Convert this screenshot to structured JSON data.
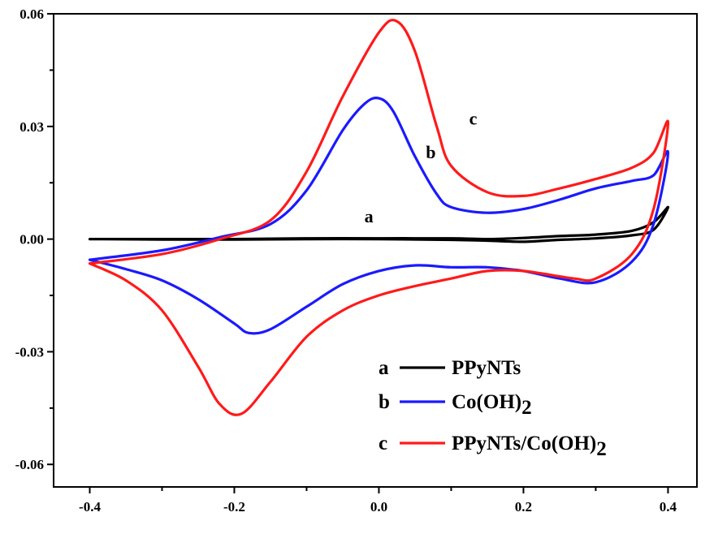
{
  "chart_data": {
    "type": "line",
    "title": "",
    "xlabel": "",
    "ylabel": "",
    "xlim": [
      -0.45,
      0.44
    ],
    "ylim": [
      -0.066,
      0.06
    ],
    "x_ticks": [
      "-0.4",
      "-0.2",
      "0.0",
      "0.2",
      "0.4"
    ],
    "x_tick_values": [
      -0.4,
      -0.2,
      0.0,
      0.2,
      0.4
    ],
    "y_ticks": [
      "0.06",
      "0.03",
      "0.00",
      "-0.03",
      "-0.06"
    ],
    "y_tick_values": [
      0.06,
      0.03,
      0.0,
      -0.03,
      -0.06
    ],
    "grid": false,
    "legend_position": "bottom-right",
    "series": [
      {
        "letter": "a",
        "name": "PPyNTs",
        "color": "#000000",
        "x": [
          -0.4,
          -0.3,
          -0.2,
          -0.1,
          0.0,
          0.1,
          0.15,
          0.2,
          0.25,
          0.3,
          0.35,
          0.38,
          0.4,
          0.38,
          0.35,
          0.3,
          0.25,
          0.2,
          0.15,
          0.1,
          0.0,
          -0.1,
          -0.2,
          -0.3,
          -0.4
        ],
        "y": [
          0.0,
          0.0,
          0.0,
          0.0002,
          0.0002,
          0.0002,
          0.0,
          0.0003,
          0.0008,
          0.0012,
          0.0022,
          0.0045,
          0.0085,
          0.0025,
          0.001,
          0.0002,
          -0.0002,
          -0.0007,
          -0.0004,
          -0.0002,
          0.0,
          0.0,
          -0.0001,
          -0.0001,
          0.0
        ]
      },
      {
        "letter": "b",
        "name": "Co(OH)",
        "name_sub": "2",
        "color": "#1a1aff",
        "x": [
          -0.4,
          -0.3,
          -0.22,
          -0.15,
          -0.1,
          -0.05,
          -0.02,
          0.0,
          0.02,
          0.05,
          0.08,
          0.1,
          0.15,
          0.2,
          0.25,
          0.3,
          0.35,
          0.38,
          0.4,
          0.38,
          0.35,
          0.3,
          0.25,
          0.2,
          0.15,
          0.1,
          0.05,
          0.0,
          -0.05,
          -0.1,
          -0.15,
          -0.18,
          -0.2,
          -0.25,
          -0.3,
          -0.35,
          -0.4
        ],
        "y": [
          -0.0055,
          -0.003,
          0.0005,
          0.004,
          0.013,
          0.029,
          0.036,
          0.0375,
          0.034,
          0.022,
          0.012,
          0.0085,
          0.007,
          0.008,
          0.0105,
          0.0135,
          0.0155,
          0.017,
          0.023,
          0.004,
          -0.006,
          -0.0115,
          -0.0105,
          -0.0085,
          -0.0075,
          -0.0075,
          -0.007,
          -0.0085,
          -0.012,
          -0.018,
          -0.024,
          -0.025,
          -0.0225,
          -0.016,
          -0.011,
          -0.008,
          -0.0055
        ]
      },
      {
        "letter": "c",
        "name": "PPyNTs/Co(OH)",
        "name_sub": "2",
        "color": "#ff1a1a",
        "x": [
          -0.4,
          -0.3,
          -0.22,
          -0.15,
          -0.1,
          -0.05,
          0.0,
          0.025,
          0.05,
          0.08,
          0.1,
          0.15,
          0.2,
          0.25,
          0.3,
          0.35,
          0.38,
          0.4,
          0.38,
          0.35,
          0.3,
          0.27,
          0.2,
          0.15,
          0.1,
          0.05,
          0.0,
          -0.05,
          -0.1,
          -0.15,
          -0.19,
          -0.22,
          -0.25,
          -0.3,
          -0.35,
          -0.4
        ],
        "y": [
          -0.0065,
          -0.004,
          0.0,
          0.005,
          0.018,
          0.038,
          0.055,
          0.058,
          0.05,
          0.03,
          0.0195,
          0.0125,
          0.0115,
          0.0135,
          0.016,
          0.019,
          0.023,
          0.031,
          0.008,
          -0.004,
          -0.0105,
          -0.0105,
          -0.0085,
          -0.0085,
          -0.0105,
          -0.0125,
          -0.015,
          -0.019,
          -0.026,
          -0.038,
          -0.0465,
          -0.044,
          -0.034,
          -0.019,
          -0.011,
          -0.0065
        ]
      }
    ],
    "curve_labels": [
      {
        "text": "a",
        "x": -0.02,
        "y": 0.0045
      },
      {
        "text": "b",
        "x": 0.065,
        "y": 0.0215
      },
      {
        "text": "c",
        "x": 0.125,
        "y": 0.0305
      }
    ]
  }
}
